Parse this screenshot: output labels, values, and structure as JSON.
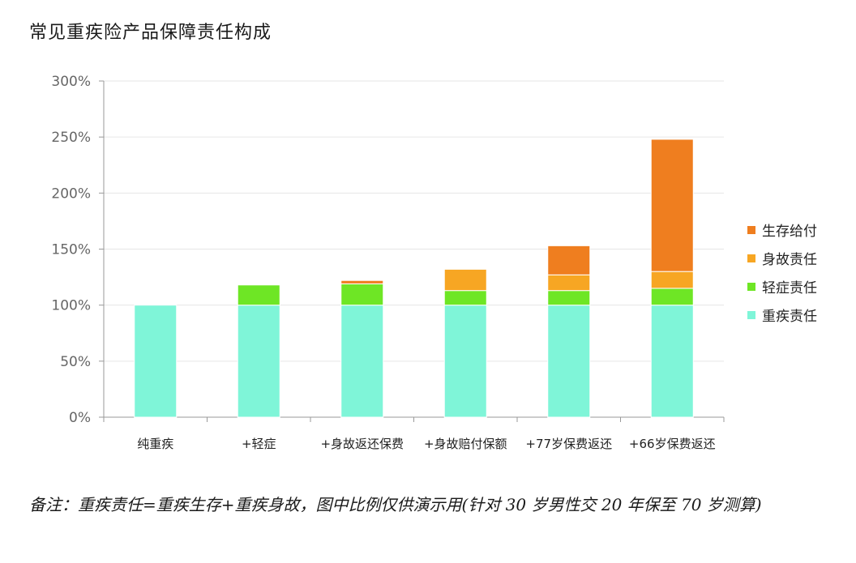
{
  "title": "常见重疾险产品保障责任构成",
  "note": "备注：重疾责任=重疾生存+重疾身故，图中比例仅供演示用(针对 30 岁男性交 20 年保至 70 岁测算)",
  "chart_data": {
    "type": "bar",
    "stacked": true,
    "categories": [
      "纯重疾",
      "+轻症",
      "+身故返还保费",
      "+身故赔付保额",
      "+77岁保费返还",
      "+66岁保费返还"
    ],
    "ylim": [
      0,
      300
    ],
    "yticks": [
      "0%",
      "50%",
      "100%",
      "150%",
      "200%",
      "250%",
      "300%"
    ],
    "grid": true,
    "legend_position": "right",
    "series": [
      {
        "name": "重疾责任",
        "color": "#7ff5d8",
        "values": [
          100,
          100,
          100,
          100,
          100,
          100
        ]
      },
      {
        "name": "轻症责任",
        "color": "#6ee625",
        "values": [
          0,
          18,
          19,
          13,
          13,
          15
        ]
      },
      {
        "name": "身故责任",
        "color": "#f7a623",
        "values": [
          0,
          0,
          0,
          19,
          14,
          15
        ]
      },
      {
        "name": "生存给付",
        "color": "#ef7e1f",
        "values": [
          0,
          0,
          3,
          0,
          26,
          118
        ]
      }
    ]
  }
}
